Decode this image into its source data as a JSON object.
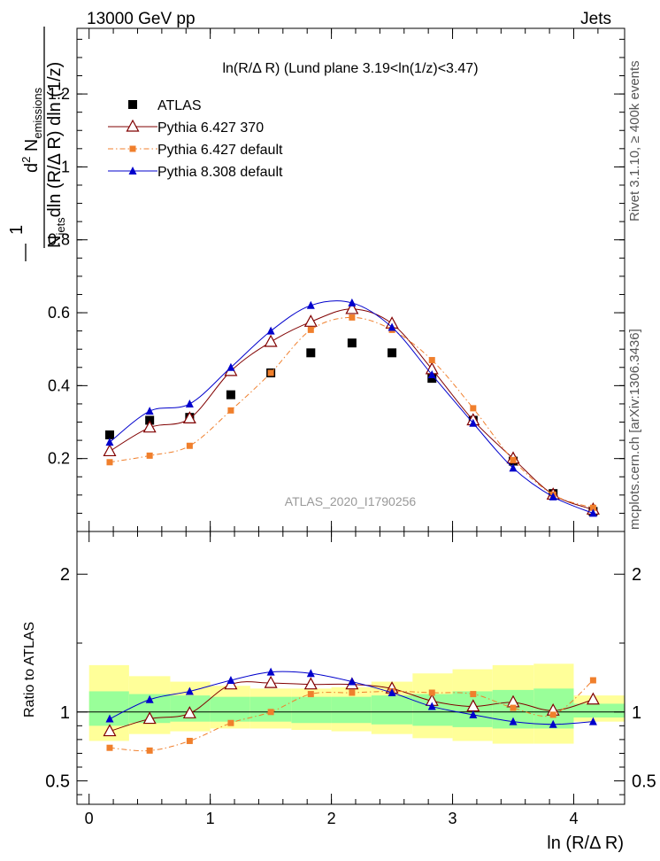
{
  "header": {
    "energy_label": "13000 GeV pp",
    "process_label": "Jets"
  },
  "side_labels": {
    "rivet": "Rivet 3.1.10, ≥ 400k events",
    "mcplots": "mcplots.cern.ch [arXiv:1306.3436]"
  },
  "chart_data": [
    {
      "type": "scatter",
      "title": "ln(R/Δ R) (Lund plane 3.19<ln(1/z)<3.47)",
      "ylabel": {
        "num_prefix": "d",
        "num_sup": "2",
        "num_main": " N",
        "num_sub": "emissions",
        "den_main": "N",
        "den_sub": "jets",
        "den_rest": "dln (R/Δ R) dln (1/z)",
        "frac_one": "1"
      },
      "watermark": "ATLAS_2020_I1790256",
      "xlim": [
        -0.1,
        4.42
      ],
      "ylim": [
        0,
        1.38
      ],
      "yticks": [
        {
          "v": 0.2,
          "label": "0.2"
        },
        {
          "v": 0.4,
          "label": "0.4"
        },
        {
          "v": 0.6,
          "label": "0.6"
        },
        {
          "v": 0.8,
          "label": "0.8"
        },
        {
          "v": 1.0,
          "label": "1"
        },
        {
          "v": 1.2,
          "label": "1.2"
        }
      ],
      "x": [
        0.17,
        0.5,
        0.83,
        1.17,
        1.5,
        1.83,
        2.17,
        2.5,
        2.83,
        3.17,
        3.5,
        3.83,
        4.16
      ],
      "series": [
        {
          "name": "ATLAS",
          "color": "#000000",
          "style": "data",
          "values": [
            0.265,
            0.305,
            0.313,
            0.375,
            0.435,
            0.49,
            0.517,
            0.49,
            0.42,
            0.305,
            0.193,
            0.104,
            0.055
          ]
        },
        {
          "name": "Pythia 6.427 370",
          "color": "#800000",
          "style": "open-triangle",
          "values": [
            0.22,
            0.285,
            0.31,
            0.44,
            0.52,
            0.575,
            0.61,
            0.57,
            0.445,
            0.305,
            0.2,
            0.101,
            0.06
          ]
        },
        {
          "name": "Pythia 6.427 default",
          "color": "#f07f2c",
          "style": "square-dashdot",
          "values": [
            0.19,
            0.208,
            0.235,
            0.332,
            0.435,
            0.553,
            0.587,
            0.553,
            0.47,
            0.338,
            0.196,
            0.101,
            0.065
          ]
        },
        {
          "name": "Pythia 8.308 default",
          "color": "#0000cc",
          "style": "filled-triangle",
          "values": [
            0.245,
            0.33,
            0.35,
            0.45,
            0.55,
            0.62,
            0.627,
            0.56,
            0.43,
            0.297,
            0.174,
            0.095,
            0.05
          ]
        }
      ]
    },
    {
      "type": "line",
      "ylabel": "Ratio to ATLAS",
      "xlabel": "ln (R/Δ R)",
      "xlim": [
        -0.1,
        4.42
      ],
      "ylim": [
        0.33,
        2.31
      ],
      "xticks": [
        {
          "v": 0,
          "label": "0"
        },
        {
          "v": 1,
          "label": "1"
        },
        {
          "v": 2,
          "label": "2"
        },
        {
          "v": 3,
          "label": "3"
        },
        {
          "v": 4,
          "label": "4"
        }
      ],
      "yticks": [
        {
          "v": 0.5,
          "label": "0.5"
        },
        {
          "v": 1,
          "label": "1"
        },
        {
          "v": 2,
          "label": "2"
        }
      ],
      "bands": {
        "bin_edges": [
          0.0,
          0.33,
          0.67,
          1.0,
          1.33,
          1.67,
          2.0,
          2.33,
          2.67,
          3.0,
          3.33,
          3.67,
          4.0,
          4.42
        ],
        "outer_low": [
          0.79,
          0.84,
          0.86,
          0.88,
          0.88,
          0.87,
          0.86,
          0.84,
          0.81,
          0.79,
          0.77,
          0.77,
          0.93
        ],
        "outer_high": [
          1.34,
          1.26,
          1.22,
          1.19,
          1.17,
          1.17,
          1.18,
          1.22,
          1.28,
          1.31,
          1.34,
          1.35,
          1.12
        ],
        "inner_low": [
          0.9,
          0.92,
          0.93,
          0.93,
          0.93,
          0.92,
          0.92,
          0.91,
          0.9,
          0.89,
          0.88,
          0.88,
          0.96
        ],
        "inner_high": [
          1.15,
          1.13,
          1.12,
          1.11,
          1.11,
          1.11,
          1.11,
          1.12,
          1.13,
          1.15,
          1.16,
          1.17,
          1.06
        ],
        "outer_color": "#ffff99",
        "inner_color": "#99ff99"
      },
      "x": [
        0.17,
        0.5,
        0.83,
        1.17,
        1.5,
        1.83,
        2.17,
        2.5,
        2.83,
        3.17,
        3.5,
        3.83,
        4.16
      ],
      "series": [
        {
          "name": "Pythia 6.427 370",
          "color": "#800000",
          "style": "open-triangle",
          "values": [
            0.86,
            0.95,
            0.99,
            1.2,
            1.21,
            1.2,
            1.2,
            1.17,
            1.08,
            1.04,
            1.07,
            1.01,
            1.09
          ]
        },
        {
          "name": "Pythia 6.427 default",
          "color": "#f07f2c",
          "style": "square-dashdot",
          "values": [
            0.74,
            0.72,
            0.79,
            0.92,
            1.0,
            1.13,
            1.14,
            1.15,
            1.14,
            1.13,
            1.03,
            0.98,
            1.23
          ]
        },
        {
          "name": "Pythia 8.308 default",
          "color": "#0000cc",
          "style": "filled-triangle",
          "values": [
            0.95,
            1.09,
            1.15,
            1.23,
            1.29,
            1.28,
            1.22,
            1.14,
            1.04,
            0.98,
            0.93,
            0.91,
            0.93
          ]
        }
      ]
    }
  ]
}
